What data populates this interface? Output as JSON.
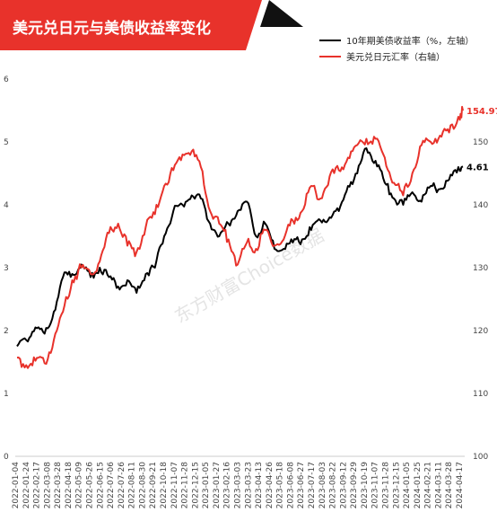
{
  "chart_data": {
    "type": "line",
    "title": "美元兑日元与美债收益率变化",
    "watermark": "东方财富Choice数据",
    "legend_position": "top-right",
    "grid": false,
    "colors": {
      "title_band": "#e8322b",
      "us10y": "#000000",
      "usdjpy": "#e8322b"
    },
    "y_left": {
      "ylim": [
        0,
        6
      ],
      "ticks": [
        "0",
        "1",
        "2",
        "3",
        "4",
        "5",
        "6"
      ]
    },
    "y_right": {
      "ylim": [
        100,
        160
      ],
      "ticks": [
        "100",
        "110",
        "120",
        "130",
        "140",
        "150"
      ]
    },
    "x_ticks": [
      "2022-01-04",
      "2022-01-24",
      "2022-02-17",
      "2022-03-08",
      "2022-03-28",
      "2022-04-18",
      "2022-05-09",
      "2022-05-26",
      "2022-06-15",
      "2022-07-06",
      "2022-07-26",
      "2022-08-11",
      "2022-08-30",
      "2022-09-21",
      "2022-10-18",
      "2022-11-07",
      "2022-11-28",
      "2022-12-15",
      "2023-01-05",
      "2023-01-27",
      "2023-02-16",
      "2023-03-03",
      "2023-03-23",
      "2023-04-13",
      "2023-04-26",
      "2023-05-18",
      "2023-06-08",
      "2023-06-27",
      "2023-07-17",
      "2023-08-03",
      "2023-08-22",
      "2023-09-12",
      "2023-09-29",
      "2023-10-19",
      "2023-11-07",
      "2023-11-28",
      "2023-12-15",
      "2024-01-05",
      "2024-01-25",
      "2024-02-21",
      "2024-03-11",
      "2024-03-28",
      "2024-04-17"
    ],
    "series": [
      {
        "name": "10年期美债收益率（%，左轴）",
        "axis": "left",
        "end_label": "4.61",
        "points": [
          [
            0,
            1.75
          ],
          [
            2,
            1.85
          ],
          [
            4,
            2.05
          ],
          [
            6,
            1.95
          ],
          [
            8,
            2.3
          ],
          [
            10,
            2.85
          ],
          [
            12,
            2.9
          ],
          [
            14,
            3.05
          ],
          [
            16,
            2.85
          ],
          [
            18,
            3.0
          ],
          [
            20,
            2.85
          ],
          [
            22,
            2.7
          ],
          [
            24,
            2.8
          ],
          [
            26,
            2.6
          ],
          [
            28,
            2.9
          ],
          [
            30,
            3.0
          ],
          [
            32,
            3.5
          ],
          [
            34,
            3.9
          ],
          [
            36,
            4.0
          ],
          [
            38,
            4.15
          ],
          [
            40,
            4.1
          ],
          [
            42,
            3.7
          ],
          [
            44,
            3.5
          ],
          [
            46,
            3.7
          ],
          [
            48,
            3.9
          ],
          [
            50,
            4.05
          ],
          [
            52,
            3.5
          ],
          [
            54,
            3.7
          ],
          [
            56,
            3.3
          ],
          [
            58,
            3.3
          ],
          [
            60,
            3.4
          ],
          [
            62,
            3.45
          ],
          [
            64,
            3.6
          ],
          [
            66,
            3.75
          ],
          [
            68,
            3.8
          ],
          [
            70,
            3.9
          ],
          [
            72,
            4.3
          ],
          [
            74,
            4.5
          ],
          [
            76,
            4.9
          ],
          [
            78,
            4.7
          ],
          [
            80,
            4.35
          ],
          [
            82,
            4.1
          ],
          [
            84,
            4.0
          ],
          [
            86,
            4.2
          ],
          [
            88,
            4.05
          ],
          [
            90,
            4.3
          ],
          [
            92,
            4.25
          ],
          [
            94,
            4.4
          ],
          [
            96,
            4.6
          ],
          [
            97,
            4.61
          ]
        ]
      },
      {
        "name": "美元兑日元汇率（右轴）",
        "axis": "right",
        "end_label": "154.97",
        "points": [
          [
            0,
            115.7
          ],
          [
            2,
            114.5
          ],
          [
            4,
            115.2
          ],
          [
            6,
            114.8
          ],
          [
            8,
            118.5
          ],
          [
            10,
            123.0
          ],
          [
            12,
            128.0
          ],
          [
            14,
            130.0
          ],
          [
            16,
            129.0
          ],
          [
            18,
            131.0
          ],
          [
            20,
            135.5
          ],
          [
            22,
            137.0
          ],
          [
            24,
            133.5
          ],
          [
            26,
            132.5
          ],
          [
            28,
            136.5
          ],
          [
            30,
            138.5
          ],
          [
            32,
            143.0
          ],
          [
            34,
            145.5
          ],
          [
            36,
            148.0
          ],
          [
            38,
            148.5
          ],
          [
            40,
            146.0
          ],
          [
            42,
            139.0
          ],
          [
            44,
            137.0
          ],
          [
            46,
            134.5
          ],
          [
            48,
            130.5
          ],
          [
            50,
            134.0
          ],
          [
            52,
            133.0
          ],
          [
            54,
            136.0
          ],
          [
            56,
            133.5
          ],
          [
            58,
            134.5
          ],
          [
            60,
            137.5
          ],
          [
            62,
            139.0
          ],
          [
            64,
            143.0
          ],
          [
            66,
            141.0
          ],
          [
            68,
            144.5
          ],
          [
            70,
            145.5
          ],
          [
            72,
            147.5
          ],
          [
            74,
            149.5
          ],
          [
            76,
            150.5
          ],
          [
            78,
            150.5
          ],
          [
            80,
            147.5
          ],
          [
            82,
            143.5
          ],
          [
            84,
            141.5
          ],
          [
            86,
            145.0
          ],
          [
            88,
            149.5
          ],
          [
            90,
            150.0
          ],
          [
            92,
            151.0
          ],
          [
            94,
            151.5
          ],
          [
            96,
            154.0
          ],
          [
            97,
            154.97
          ]
        ]
      }
    ]
  }
}
